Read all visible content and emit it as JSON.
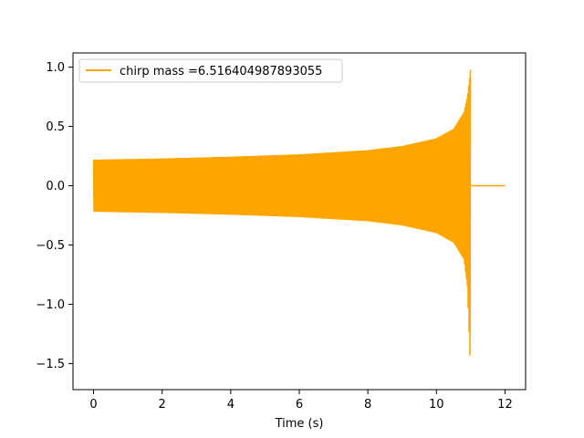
{
  "chart_data": {
    "type": "line",
    "xlabel": "Time (s)",
    "ylabel": "",
    "xlim": [
      -0.6,
      12.6
    ],
    "ylim": [
      -1.72,
      1.12
    ],
    "grid": false,
    "legend_position": "top-left",
    "x_ticks": [
      0,
      2,
      4,
      6,
      8,
      10,
      12
    ],
    "x_tick_labels": [
      "0",
      "2",
      "4",
      "6",
      "8",
      "10",
      "12"
    ],
    "y_ticks": [
      -1.5,
      -1.0,
      -0.5,
      0.0,
      0.5,
      1.0
    ],
    "y_tick_labels": [
      "−1.5",
      "−1.0",
      "−0.5",
      "0.0",
      "0.5",
      "1.0"
    ],
    "series": [
      {
        "name": "chirp mass =6.516404987893055",
        "color": "#ffa500",
        "upper_envelope": [
          [
            0.0,
            0.22
          ],
          [
            2.0,
            0.23
          ],
          [
            4.0,
            0.245
          ],
          [
            6.0,
            0.265
          ],
          [
            8.0,
            0.3
          ],
          [
            9.0,
            0.335
          ],
          [
            10.0,
            0.4
          ],
          [
            10.5,
            0.48
          ],
          [
            10.8,
            0.62
          ],
          [
            10.9,
            0.75
          ],
          [
            11.0,
            1.0
          ]
        ],
        "lower_envelope": [
          [
            0.0,
            -0.22
          ],
          [
            2.0,
            -0.23
          ],
          [
            4.0,
            -0.245
          ],
          [
            6.0,
            -0.265
          ],
          [
            8.0,
            -0.3
          ],
          [
            9.0,
            -0.335
          ],
          [
            10.0,
            -0.4
          ],
          [
            10.5,
            -0.48
          ],
          [
            10.8,
            -0.62
          ],
          [
            10.9,
            -0.85
          ],
          [
            11.0,
            -1.6
          ]
        ],
        "tail": [
          [
            11.0,
            0.0
          ],
          [
            12.0,
            0.0
          ]
        ]
      }
    ]
  }
}
